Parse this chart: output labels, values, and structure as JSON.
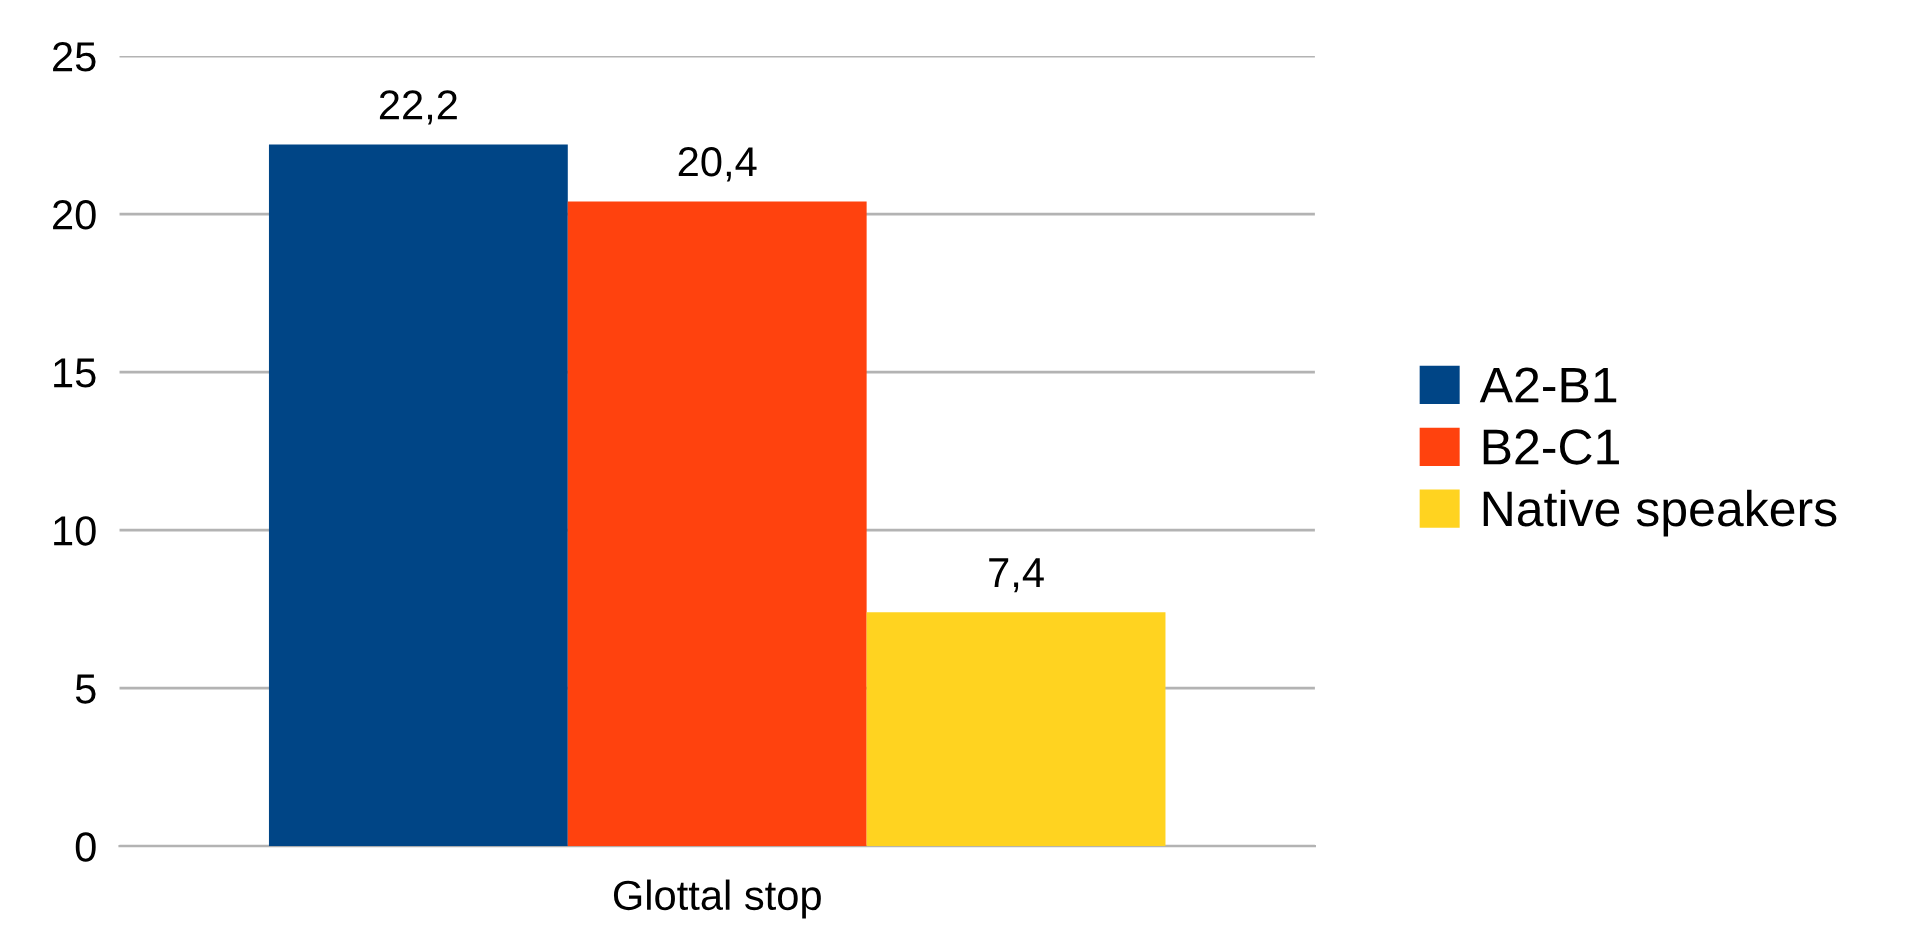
{
  "chart_data": {
    "type": "bar",
    "categories": [
      "Glottal stop"
    ],
    "series": [
      {
        "name": "A2-B1",
        "color": "#004586",
        "values": [
          22.2
        ],
        "value_labels": [
          "22,2"
        ]
      },
      {
        "name": "B2-C1",
        "color": "#ff420e",
        "values": [
          20.4
        ],
        "value_labels": [
          "20,4"
        ]
      },
      {
        "name": "Native speakers",
        "color": "#ffd320",
        "values": [
          7.4
        ],
        "value_labels": [
          "7,4"
        ]
      }
    ],
    "ylim": [
      0,
      25
    ],
    "yticks": [
      0,
      5,
      10,
      15,
      20,
      25
    ],
    "grid": "y",
    "legend": "right"
  }
}
